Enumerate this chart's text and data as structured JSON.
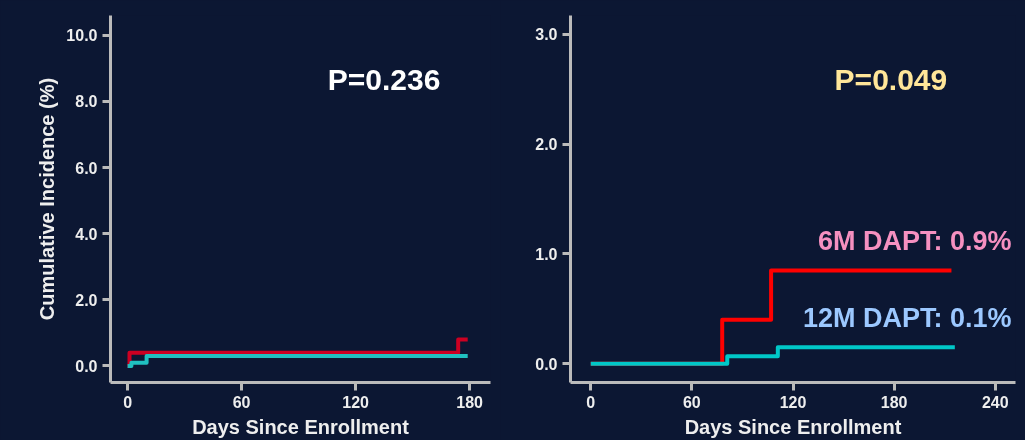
{
  "chart_data": [
    {
      "type": "step",
      "ylabel": "Cumulative Incidence (%)",
      "xlabel": "Days Since Enrollment",
      "annotations": [
        "P=0.236"
      ],
      "xlim": [
        -9,
        191
      ],
      "ylim": [
        -0.5,
        10.6
      ],
      "xticks": [
        0,
        60,
        120,
        180
      ],
      "yticks": [
        {
          "value": 0,
          "label": "0.0"
        },
        {
          "value": 2,
          "label": "2.0"
        },
        {
          "value": 4,
          "label": "4.0"
        },
        {
          "value": 6,
          "label": "6.0"
        },
        {
          "value": 8,
          "label": "8.0"
        },
        {
          "value": 10,
          "label": "10.0"
        }
      ],
      "grid": false,
      "legend": false,
      "marker": "none",
      "line_style": "solid",
      "series": [
        {
          "color": "#cc0022",
          "x": [
            0,
            1,
            174,
            179
          ],
          "values": [
            0,
            0.4,
            0.8,
            0.8
          ]
        },
        {
          "color": "#20c0c0",
          "x": [
            0,
            2,
            10,
            179
          ],
          "values": [
            0,
            0.1,
            0.3,
            0.3
          ]
        }
      ]
    },
    {
      "type": "step",
      "xlabel": "Days Since Enrollment",
      "annotations": [
        "P=0.049"
      ],
      "xlim": [
        -12,
        252
      ],
      "ylim": [
        -0.17,
        3.17
      ],
      "xticks": [
        0,
        60,
        120,
        180,
        240
      ],
      "yticks": [
        {
          "value": 0,
          "label": "0.0"
        },
        {
          "value": 1,
          "label": "1.0"
        },
        {
          "value": 2,
          "label": "2.0"
        },
        {
          "value": 3,
          "label": "3.0"
        }
      ],
      "grid": false,
      "legend": false,
      "marker": "none",
      "line_style": "solid",
      "series": [
        {
          "name": "6M DAPT: 0.9%",
          "color": "#ff0000",
          "x": [
            0,
            78,
            107,
            214
          ],
          "values": [
            0,
            0.4,
            0.85,
            0.85
          ]
        },
        {
          "name": "12M DAPT: 0.1%",
          "color": "#00c8c8",
          "x": [
            0,
            81,
            111,
            216
          ],
          "values": [
            0,
            0.07,
            0.15,
            0.15
          ]
        }
      ]
    }
  ]
}
